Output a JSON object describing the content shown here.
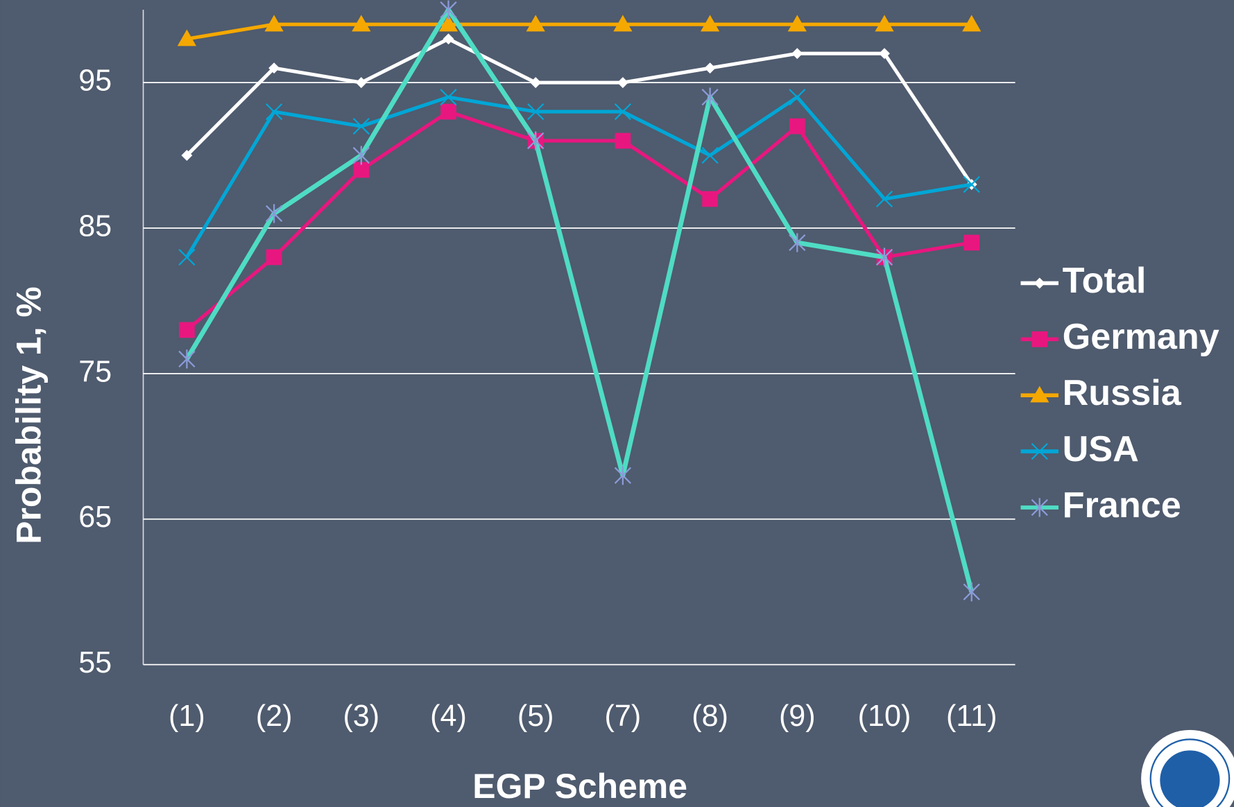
{
  "chart_data": {
    "type": "line",
    "x_label": "EGP Scheme",
    "y_label": "Probability 1, %",
    "categories": [
      "(1)",
      "(2)",
      "(3)",
      "(4)",
      "(5)",
      "(7)",
      "(8)",
      "(9)",
      "(10)",
      "(11)"
    ],
    "series": [
      {
        "name": "Total",
        "color": "#ffffff",
        "marker": "diamond",
        "values": [
          90,
          96,
          95,
          98,
          95,
          95,
          96,
          97,
          97,
          88
        ]
      },
      {
        "name": "Germany",
        "color": "#e8177f",
        "marker": "square",
        "values": [
          78,
          83,
          89,
          93,
          91,
          91,
          87,
          92,
          83,
          84
        ]
      },
      {
        "name": "Russia",
        "color": "#f5a800",
        "marker": "triangle",
        "values": [
          98,
          99,
          99,
          99,
          99,
          99,
          99,
          99,
          99,
          99
        ]
      },
      {
        "name": "USA",
        "color": "#00a6d6",
        "marker": "x",
        "values": [
          83,
          93,
          92,
          94,
          93,
          93,
          90,
          94,
          87,
          88
        ]
      },
      {
        "name": "France",
        "color": "#4fdcc4",
        "marker": "star",
        "values": [
          76,
          86,
          90,
          100,
          91,
          68,
          94,
          84,
          83,
          60
        ]
      }
    ],
    "ylim": [
      55,
      100
    ],
    "yticks": [
      55,
      65,
      75,
      85,
      95
    ],
    "grid": true,
    "legend": "right"
  }
}
